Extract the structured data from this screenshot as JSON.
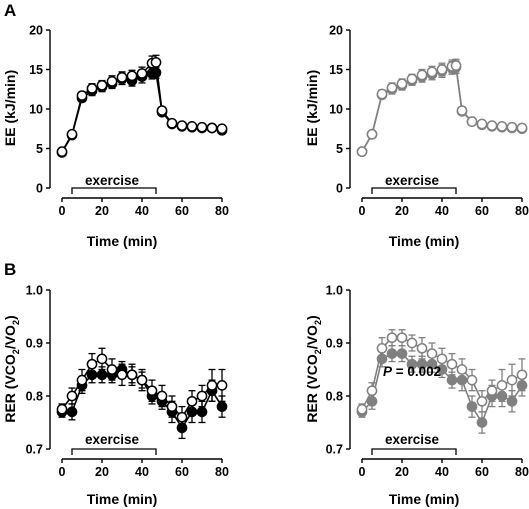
{
  "panels": [
    "A",
    "B"
  ],
  "chart_data": [
    {
      "id": "A-left",
      "type": "line",
      "ylabel": "EE (kJ/min)",
      "xlabel": "Time (min)",
      "xlim": [
        0,
        80
      ],
      "ylim": [
        0,
        20
      ],
      "xticks": [
        0,
        20,
        40,
        60,
        80
      ],
      "yticks": [
        0,
        5,
        10,
        15,
        20
      ],
      "annotation": "exercise",
      "exercise_range": [
        5,
        47
      ],
      "pvalue": "",
      "series": [
        {
          "style": "filled-black",
          "x": [
            0,
            5,
            10,
            15,
            20,
            25,
            30,
            35,
            40,
            45,
            47,
            50,
            55,
            60,
            65,
            70,
            75,
            80
          ],
          "y": [
            4.5,
            6.7,
            11.4,
            12.3,
            12.8,
            13.2,
            13.8,
            13.6,
            14.1,
            14.5,
            14.6,
            9.6,
            8.1,
            7.8,
            7.7,
            7.6,
            7.6,
            7.3
          ],
          "err": [
            0.2,
            0.3,
            0.5,
            0.6,
            0.6,
            0.6,
            0.7,
            0.7,
            0.8,
            0.7,
            0.7,
            0.4,
            0.4,
            0.3,
            0.3,
            0.3,
            0.3,
            0.3
          ]
        },
        {
          "style": "open-black",
          "x": [
            0,
            5,
            10,
            15,
            20,
            25,
            30,
            35,
            40,
            45,
            47,
            50,
            55,
            60,
            65,
            70,
            75,
            80
          ],
          "y": [
            4.6,
            6.8,
            11.7,
            12.6,
            13.0,
            13.5,
            14.0,
            14.2,
            14.5,
            15.8,
            15.9,
            9.8,
            8.2,
            7.9,
            7.8,
            7.7,
            7.6,
            7.5
          ],
          "err": [
            0.2,
            0.3,
            0.5,
            0.6,
            0.6,
            0.7,
            0.7,
            0.7,
            0.8,
            0.9,
            0.9,
            0.4,
            0.4,
            0.3,
            0.3,
            0.3,
            0.3,
            0.3
          ]
        }
      ]
    },
    {
      "id": "A-right",
      "type": "line",
      "ylabel": "EE (kJ/min)",
      "xlabel": "Time (min)",
      "xlim": [
        0,
        80
      ],
      "ylim": [
        0,
        20
      ],
      "xticks": [
        0,
        20,
        40,
        60,
        80
      ],
      "yticks": [
        0,
        5,
        10,
        15,
        20
      ],
      "annotation": "exercise",
      "exercise_range": [
        5,
        47
      ],
      "pvalue": "",
      "series": [
        {
          "style": "filled-grey",
          "x": [
            0,
            5,
            10,
            15,
            20,
            25,
            30,
            35,
            40,
            45,
            47,
            50,
            55,
            60,
            65,
            70,
            75,
            80
          ],
          "y": [
            4.6,
            6.8,
            11.8,
            12.5,
            13.0,
            13.6,
            14.1,
            14.4,
            14.8,
            15.2,
            15.3,
            9.7,
            8.4,
            8.0,
            7.8,
            7.7,
            7.6,
            7.5
          ],
          "err": [
            0.2,
            0.3,
            0.5,
            0.6,
            0.6,
            0.6,
            0.7,
            0.7,
            0.8,
            0.8,
            0.8,
            0.4,
            0.4,
            0.3,
            0.3,
            0.3,
            0.3,
            0.3
          ]
        },
        {
          "style": "open-grey",
          "x": [
            0,
            5,
            10,
            15,
            20,
            25,
            30,
            35,
            40,
            45,
            47,
            50,
            55,
            60,
            65,
            70,
            75,
            80
          ],
          "y": [
            4.6,
            6.8,
            11.9,
            12.7,
            13.2,
            13.8,
            14.3,
            14.7,
            15.0,
            15.4,
            15.5,
            9.8,
            8.4,
            8.1,
            7.9,
            7.8,
            7.7,
            7.6
          ],
          "err": [
            0.2,
            0.3,
            0.5,
            0.6,
            0.6,
            0.6,
            0.7,
            0.7,
            0.8,
            0.8,
            0.8,
            0.4,
            0.4,
            0.3,
            0.3,
            0.3,
            0.3,
            0.3
          ]
        }
      ]
    },
    {
      "id": "B-left",
      "type": "line",
      "ylabel_main": "RER (VCO",
      "ylabel_sub1": "2",
      "ylabel_mid": "/VO",
      "ylabel_sub2": "2",
      "ylabel_end": ")",
      "xlabel": "Time (min)",
      "xlim": [
        0,
        80
      ],
      "ylim": [
        0.7,
        1.0
      ],
      "xticks": [
        0,
        20,
        40,
        60,
        80
      ],
      "yticks": [
        "0.7",
        "0.8",
        "0.9",
        "1.0"
      ],
      "annotation": "exercise",
      "exercise_range": [
        5,
        47
      ],
      "pvalue": "",
      "series": [
        {
          "style": "filled-black",
          "x": [
            0,
            5,
            10,
            15,
            20,
            25,
            30,
            35,
            40,
            45,
            50,
            55,
            60,
            65,
            70,
            75,
            80
          ],
          "y": [
            0.77,
            0.77,
            0.82,
            0.84,
            0.84,
            0.84,
            0.85,
            0.84,
            0.83,
            0.8,
            0.79,
            0.77,
            0.74,
            0.77,
            0.77,
            0.81,
            0.78
          ],
          "err": [
            0.01,
            0.015,
            0.015,
            0.015,
            0.015,
            0.015,
            0.015,
            0.015,
            0.015,
            0.015,
            0.015,
            0.02,
            0.02,
            0.02,
            0.02,
            0.02,
            0.02
          ]
        },
        {
          "style": "open-black",
          "x": [
            0,
            5,
            10,
            15,
            20,
            25,
            30,
            35,
            40,
            45,
            50,
            55,
            60,
            65,
            70,
            75,
            80
          ],
          "y": [
            0.775,
            0.8,
            0.83,
            0.86,
            0.87,
            0.85,
            0.84,
            0.84,
            0.83,
            0.81,
            0.8,
            0.78,
            0.76,
            0.79,
            0.8,
            0.82,
            0.82
          ],
          "err": [
            0.01,
            0.015,
            0.02,
            0.02,
            0.02,
            0.02,
            0.02,
            0.02,
            0.02,
            0.02,
            0.02,
            0.02,
            0.02,
            0.02,
            0.02,
            0.03,
            0.03
          ]
        }
      ]
    },
    {
      "id": "B-right",
      "type": "line",
      "ylabel_main": "RER (VCO",
      "ylabel_sub1": "2",
      "ylabel_mid": "/VO",
      "ylabel_sub2": "2",
      "ylabel_end": ")",
      "xlabel": "Time (min)",
      "xlim": [
        0,
        80
      ],
      "ylim": [
        0.7,
        1.0
      ],
      "xticks": [
        0,
        20,
        40,
        60,
        80
      ],
      "yticks": [
        "0.7",
        "0.8",
        "0.9",
        "1.0"
      ],
      "annotation": "exercise",
      "exercise_range": [
        5,
        47
      ],
      "pvalue_label": "P",
      "pvalue_text": " = 0.002",
      "series": [
        {
          "style": "filled-grey",
          "x": [
            0,
            5,
            10,
            15,
            20,
            25,
            30,
            35,
            40,
            45,
            50,
            55,
            60,
            65,
            70,
            75,
            80
          ],
          "y": [
            0.77,
            0.79,
            0.87,
            0.88,
            0.88,
            0.86,
            0.86,
            0.86,
            0.85,
            0.83,
            0.83,
            0.78,
            0.75,
            0.8,
            0.8,
            0.79,
            0.82
          ],
          "err": [
            0.01,
            0.015,
            0.015,
            0.015,
            0.015,
            0.015,
            0.015,
            0.015,
            0.015,
            0.015,
            0.02,
            0.02,
            0.02,
            0.02,
            0.02,
            0.02,
            0.02
          ]
        },
        {
          "style": "open-grey",
          "x": [
            0,
            5,
            10,
            15,
            20,
            25,
            30,
            35,
            40,
            45,
            50,
            55,
            60,
            65,
            70,
            75,
            80
          ],
          "y": [
            0.775,
            0.81,
            0.89,
            0.91,
            0.91,
            0.9,
            0.89,
            0.88,
            0.87,
            0.86,
            0.85,
            0.83,
            0.79,
            0.81,
            0.82,
            0.83,
            0.84
          ],
          "err": [
            0.01,
            0.015,
            0.02,
            0.015,
            0.015,
            0.015,
            0.02,
            0.02,
            0.02,
            0.02,
            0.02,
            0.02,
            0.02,
            0.02,
            0.03,
            0.03,
            0.03
          ]
        }
      ]
    }
  ],
  "colors": {
    "black": "#000000",
    "grey": "#808080",
    "open_fill": "#ffffff"
  }
}
